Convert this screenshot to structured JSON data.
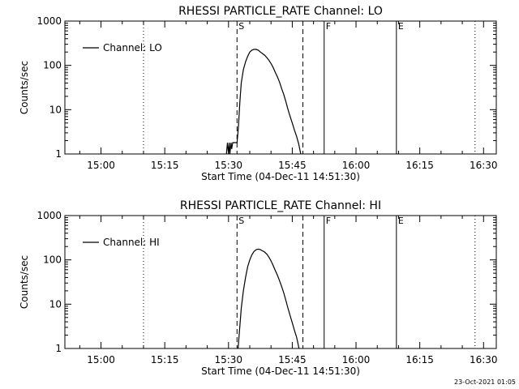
{
  "footer": {
    "timestamp": "23-Oct-2021 01:05"
  },
  "chart_data": [
    {
      "type": "line",
      "title": "RHESSI PARTICLE_RATE Channel: LO",
      "xlabel": "Start Time (04-Dec-11 14:51:30)",
      "ylabel": "Counts/sec",
      "yscale": "log",
      "ylim": [
        1,
        1000
      ],
      "xlim": [
        "14:51:30",
        "16:33:00"
      ],
      "x_ticks": [
        "15:00",
        "15:15",
        "15:30",
        "15:45",
        "16:00",
        "16:15",
        "16:30"
      ],
      "y_ticks": [
        "1",
        "10",
        "100",
        "1000"
      ],
      "legend": {
        "position": "top-left",
        "entries": [
          "Channel: LO"
        ]
      },
      "grid": false,
      "markers": [
        {
          "label": "",
          "time": "15:10:00",
          "style": "dotted"
        },
        {
          "label": "S",
          "time": "15:32:00",
          "style": "dashed"
        },
        {
          "label": "",
          "time": "15:47:30",
          "style": "dashed"
        },
        {
          "label": "F",
          "time": "15:52:30",
          "style": "solid"
        },
        {
          "label": "E",
          "time": "16:09:30",
          "style": "solid"
        },
        {
          "label": "",
          "time": "16:28:00",
          "style": "dotted"
        }
      ],
      "series": [
        {
          "name": "Channel: LO",
          "x": [
            "15:29:30",
            "15:29:45",
            "15:30:00",
            "15:30:10",
            "15:30:20",
            "15:30:35",
            "15:30:45",
            "15:31:00",
            "15:31:20",
            "15:31:40",
            "15:32:00",
            "15:32:20",
            "15:32:40",
            "15:33:00",
            "15:33:30",
            "15:34:00",
            "15:34:30",
            "15:35:00",
            "15:35:30",
            "15:36:00",
            "15:36:30",
            "15:37:00",
            "15:37:30",
            "15:38:00",
            "15:38:30",
            "15:39:00",
            "15:39:30",
            "15:40:00",
            "15:40:30",
            "15:41:00",
            "15:41:30",
            "15:42:00",
            "15:42:30",
            "15:43:00",
            "15:43:30",
            "15:44:00",
            "15:44:30",
            "15:45:00",
            "15:45:30",
            "15:46:00",
            "15:46:30",
            "15:46:50",
            "15:47:00"
          ],
          "y": [
            1,
            1.8,
            1,
            1.8,
            1,
            1.8,
            1.3,
            1.8,
            1.8,
            1.8,
            1.8,
            4,
            15,
            40,
            80,
            120,
            160,
            200,
            220,
            230,
            230,
            220,
            200,
            185,
            170,
            150,
            130,
            110,
            90,
            70,
            55,
            42,
            30,
            22,
            15,
            10,
            7,
            5,
            3.5,
            2.5,
            1.7,
            1.2,
            1
          ]
        }
      ]
    },
    {
      "type": "line",
      "title": "RHESSI PARTICLE_RATE Channel: HI",
      "xlabel": "Start Time (04-Dec-11 14:51:30)",
      "ylabel": "Counts/sec",
      "yscale": "log",
      "ylim": [
        1,
        1000
      ],
      "xlim": [
        "14:51:30",
        "16:33:00"
      ],
      "x_ticks": [
        "15:00",
        "15:15",
        "15:30",
        "15:45",
        "16:00",
        "16:15",
        "16:30"
      ],
      "y_ticks": [
        "1",
        "10",
        "100",
        "1000"
      ],
      "legend": {
        "position": "top-left",
        "entries": [
          "Channel: HI"
        ]
      },
      "grid": false,
      "markers": [
        {
          "label": "",
          "time": "15:10:00",
          "style": "dotted"
        },
        {
          "label": "S",
          "time": "15:32:00",
          "style": "dashed"
        },
        {
          "label": "",
          "time": "15:47:30",
          "style": "dashed"
        },
        {
          "label": "F",
          "time": "15:52:30",
          "style": "solid"
        },
        {
          "label": "E",
          "time": "16:09:30",
          "style": "solid"
        },
        {
          "label": "",
          "time": "16:28:00",
          "style": "dotted"
        }
      ],
      "series": [
        {
          "name": "Channel: HI",
          "x": [
            "15:32:15",
            "15:32:30",
            "15:32:45",
            "15:33:00",
            "15:33:30",
            "15:34:00",
            "15:34:30",
            "15:35:00",
            "15:35:30",
            "15:36:00",
            "15:36:30",
            "15:37:00",
            "15:37:30",
            "15:38:00",
            "15:38:30",
            "15:39:00",
            "15:39:30",
            "15:40:00",
            "15:40:30",
            "15:41:00",
            "15:41:30",
            "15:42:00",
            "15:42:30",
            "15:43:00",
            "15:43:30",
            "15:44:00",
            "15:44:30",
            "15:45:00",
            "15:45:30",
            "15:46:00",
            "15:46:20",
            "15:46:35"
          ],
          "y": [
            1,
            2,
            4,
            8,
            20,
            40,
            70,
            100,
            130,
            155,
            170,
            175,
            170,
            160,
            150,
            135,
            115,
            95,
            75,
            58,
            45,
            34,
            25,
            18,
            12,
            8,
            5.5,
            3.8,
            2.6,
            1.8,
            1.3,
            1
          ]
        }
      ]
    }
  ]
}
